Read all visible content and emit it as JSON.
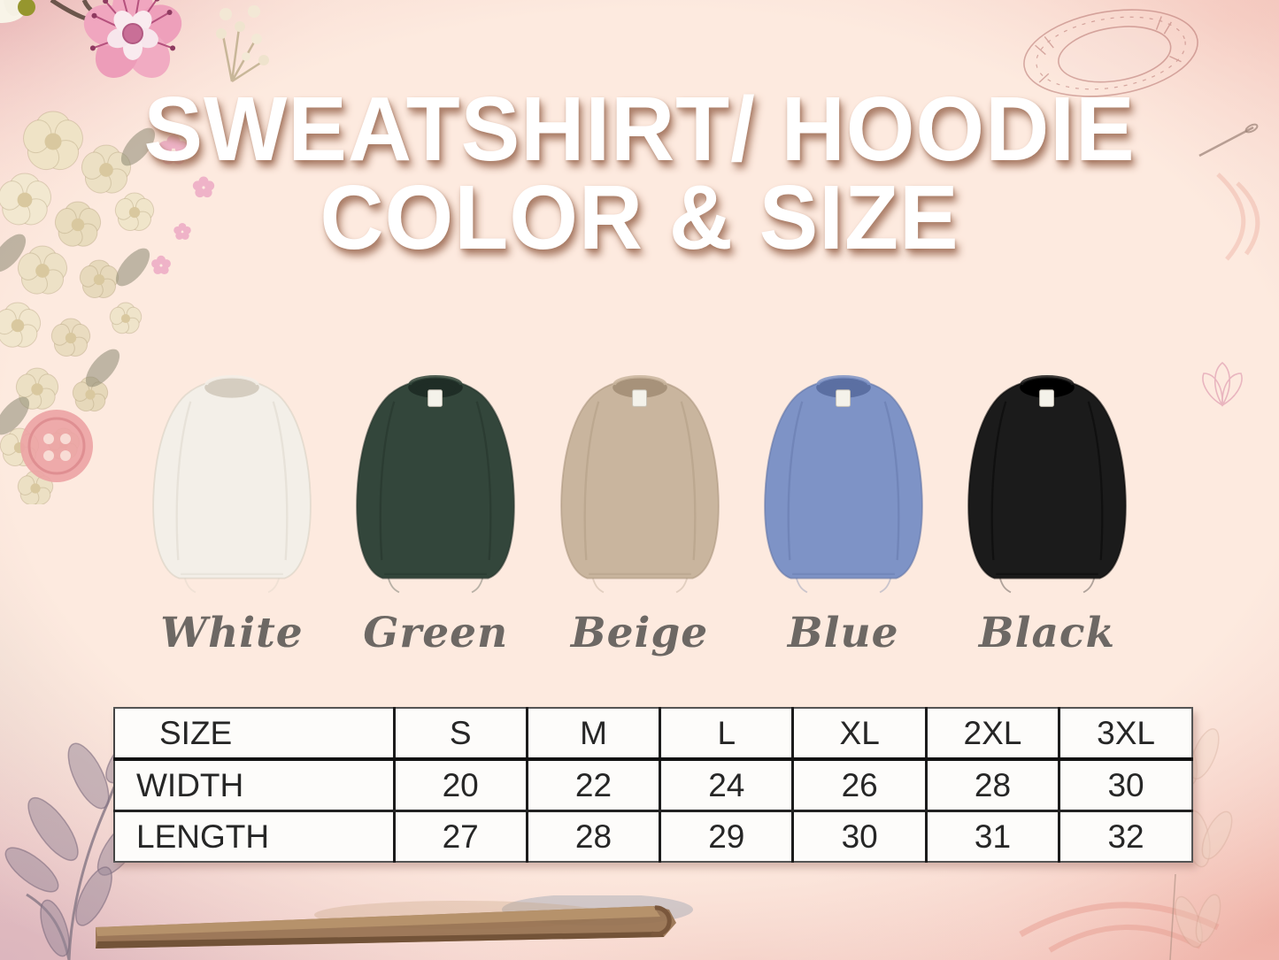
{
  "page": {
    "center_background": "#fdeadf",
    "border_pink": "#f2cbc6",
    "label_color": "#6d6864"
  },
  "title": {
    "line1": "SWEATSHIRT/ HOODIE",
    "line2": "COLOR & SIZE",
    "color": "#ffffff"
  },
  "products": [
    {
      "name": "White",
      "color": "#f3efe8",
      "shade": "#d5cdc0",
      "tag": false
    },
    {
      "name": "Green",
      "color": "#33463b",
      "shade": "#1f2d26",
      "tag": true
    },
    {
      "name": "Beige",
      "color": "#c9b59e",
      "shade": "#a7927a",
      "tag": true
    },
    {
      "name": "Blue",
      "color": "#7e93c6",
      "shade": "#5b6fa2",
      "tag": true
    },
    {
      "name": "Black",
      "color": "#1b1b1b",
      "shade": "#000000",
      "tag": true
    }
  ],
  "size_chart": {
    "headers": [
      "SIZE",
      "S",
      "M",
      "L",
      "XL",
      "2XL",
      "3XL"
    ],
    "rows": [
      {
        "label": "WIDTH",
        "values": [
          20,
          22,
          24,
          26,
          28,
          30
        ]
      },
      {
        "label": "LENGTH",
        "values": [
          27,
          28,
          29,
          30,
          31,
          32
        ]
      }
    ]
  },
  "chart_data": {
    "type": "table",
    "title": "SWEATSHIRT/ HOODIE COLOR & SIZE",
    "columns": [
      "SIZE",
      "S",
      "M",
      "L",
      "XL",
      "2XL",
      "3XL"
    ],
    "rows": [
      [
        "WIDTH",
        20,
        22,
        24,
        26,
        28,
        30
      ],
      [
        "LENGTH",
        27,
        28,
        29,
        30,
        31,
        32
      ]
    ],
    "color_options": [
      "White",
      "Green",
      "Beige",
      "Blue",
      "Black"
    ]
  },
  "decorations": {
    "top_left": "cherry-blossom-and-cream-flower-cascade",
    "top_right": "ornate-frame-sketch",
    "left": "pink-sewing-button",
    "bottom_left": "leaf-branch-sketch",
    "bottom": "wooden-stick-with-curl",
    "right_top": "needle-icon",
    "bottom_right": "stitch-arcs-sketch"
  }
}
